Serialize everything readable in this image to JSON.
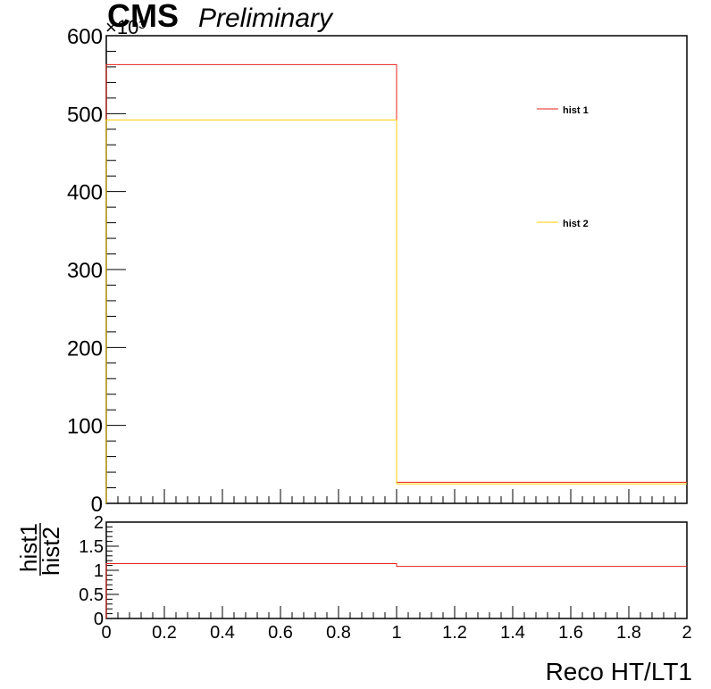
{
  "header": {
    "brand": "CMS",
    "status": "Preliminary",
    "exponent": "×10³"
  },
  "colors": {
    "hist1": "#e8211a",
    "hist2": "#ffcc00",
    "axis": "#000000"
  },
  "chart_data": [
    {
      "type": "line",
      "step": true,
      "x_edges": [
        0,
        1,
        2
      ],
      "xlim": [
        0,
        2
      ],
      "ylim": [
        0,
        600
      ],
      "y_multiplier": "×10³",
      "yticks": [
        0,
        100,
        200,
        300,
        400,
        500,
        600
      ],
      "xlabel": "Reco HT/LT1",
      "ylabel": "",
      "legend_position": "upper-right",
      "series": [
        {
          "name": "hist 1",
          "values": [
            563,
            27
          ]
        },
        {
          "name": "hist 2",
          "values": [
            492,
            25
          ]
        }
      ]
    },
    {
      "type": "line",
      "step": true,
      "x_edges": [
        0,
        1,
        2
      ],
      "xlim": [
        0,
        2
      ],
      "ylim": [
        0,
        2
      ],
      "yticks": [
        0,
        0.5,
        1,
        1.5,
        2
      ],
      "ytick_labels": [
        "0",
        "0.5",
        "1",
        "1.5",
        "2"
      ],
      "xticks": [
        0,
        0.2,
        0.4,
        0.6,
        0.8,
        1,
        1.2,
        1.4,
        1.6,
        1.8,
        2
      ],
      "xtick_labels": [
        "0",
        "0.2",
        "0.4",
        "0.6",
        "0.8",
        "1",
        "1.2",
        "1.4",
        "1.6",
        "1.8",
        "2"
      ],
      "ylabel_num": "hist1",
      "ylabel_den": "hist2",
      "series": [
        {
          "values": [
            1.14,
            1.08
          ]
        }
      ]
    }
  ]
}
